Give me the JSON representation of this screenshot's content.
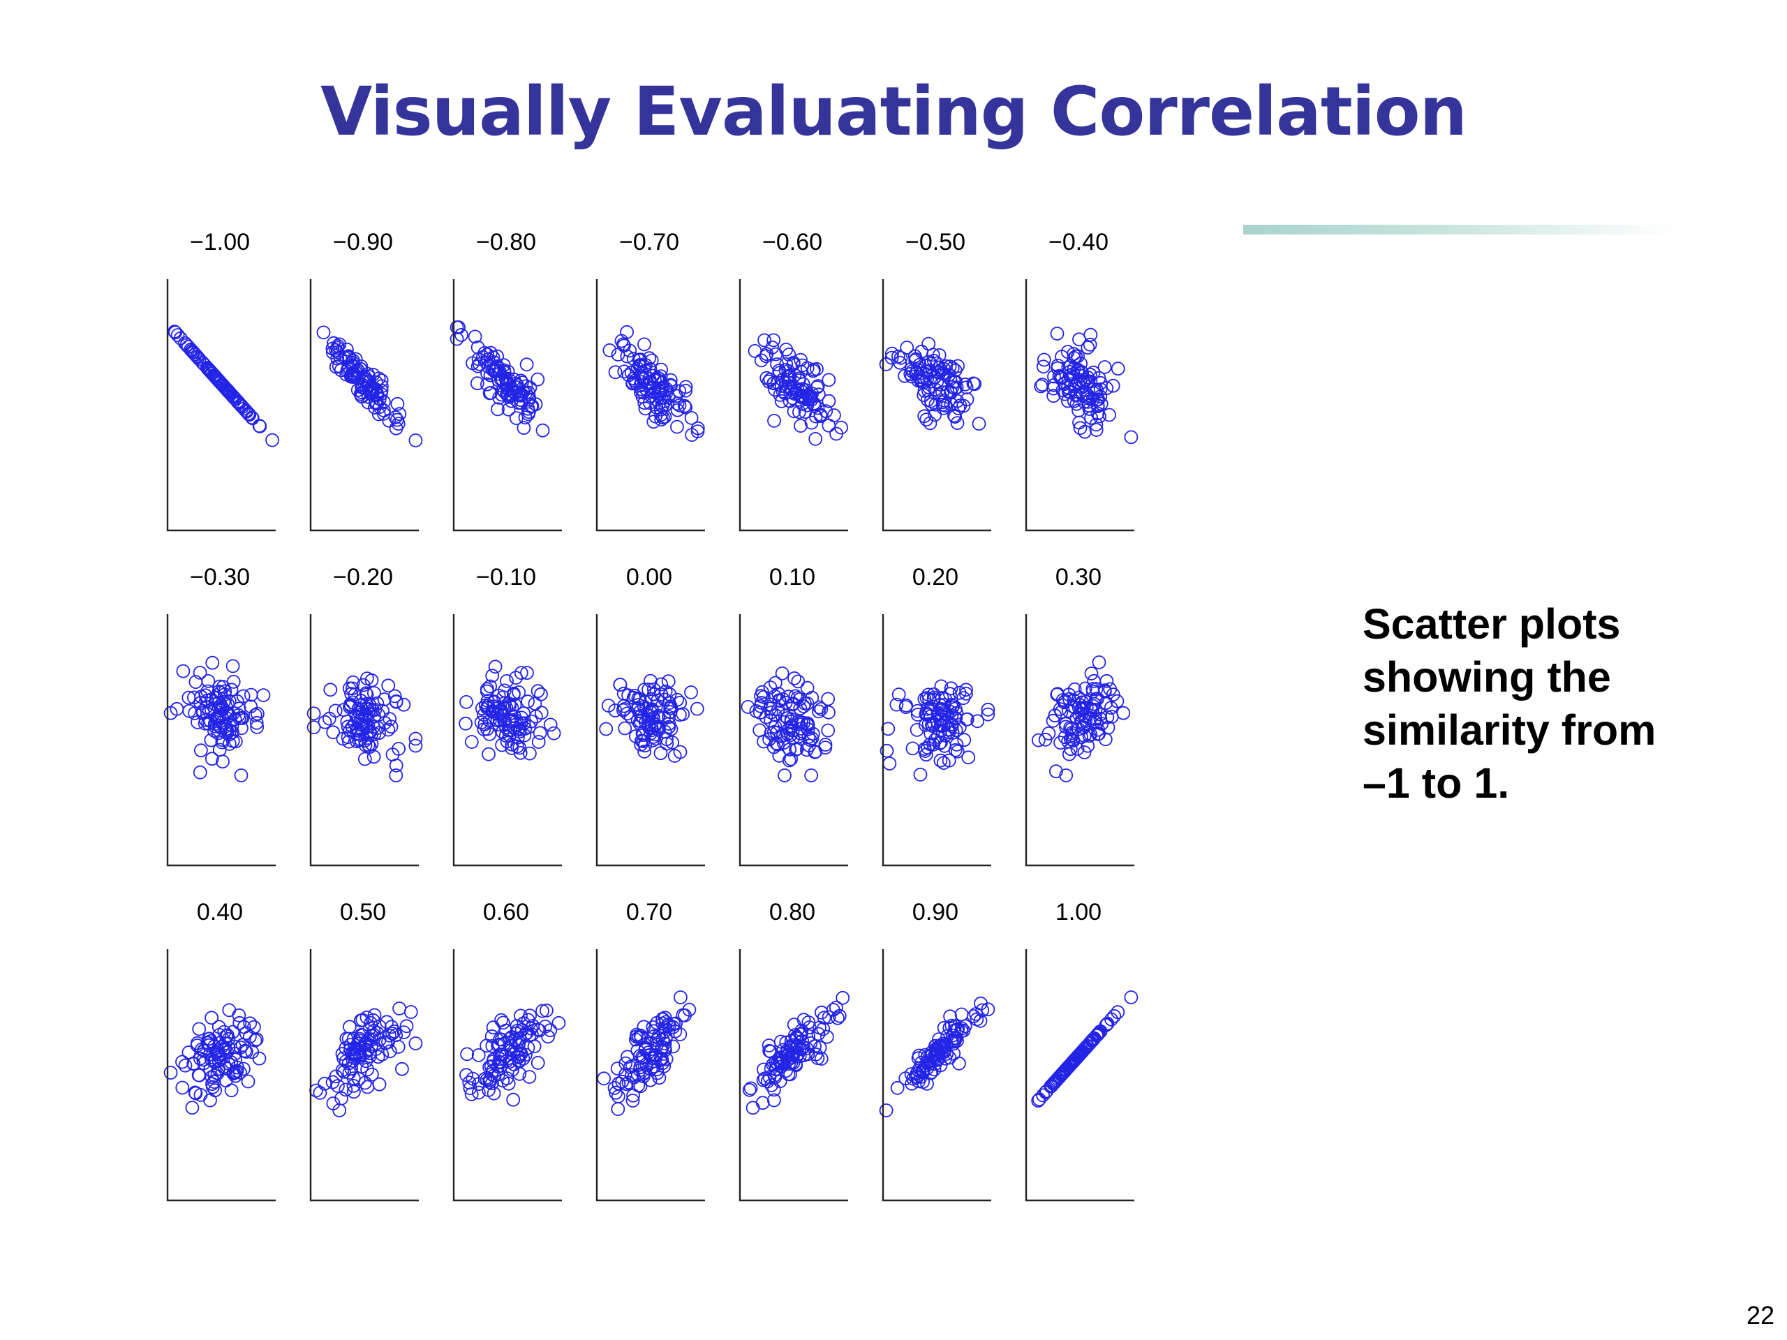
{
  "slide": {
    "title": "Visually Evaluating Correlation",
    "caption_lines": [
      "Scatter plots",
      "showing the",
      "similarity from",
      "–1 to 1."
    ],
    "page_number": "22"
  },
  "colors": {
    "title": "#34349a",
    "points": "#2424e6",
    "accent_rule": "#a9d2cc"
  },
  "chart_data": {
    "type": "scatter",
    "marker": "open-circle",
    "points_per_panel": 100,
    "panels": [
      {
        "label": "−1.00",
        "r": -1.0
      },
      {
        "label": "−0.90",
        "r": -0.9
      },
      {
        "label": "−0.80",
        "r": -0.8
      },
      {
        "label": "−0.70",
        "r": -0.7
      },
      {
        "label": "−0.60",
        "r": -0.6
      },
      {
        "label": "−0.50",
        "r": -0.5
      },
      {
        "label": "−0.40",
        "r": -0.4
      },
      {
        "label": "−0.30",
        "r": -0.3
      },
      {
        "label": "−0.20",
        "r": -0.2
      },
      {
        "label": "−0.10",
        "r": -0.1
      },
      {
        "label": "0.00",
        "r": 0.0
      },
      {
        "label": "0.10",
        "r": 0.1
      },
      {
        "label": "0.20",
        "r": 0.2
      },
      {
        "label": "0.30",
        "r": 0.3
      },
      {
        "label": "0.40",
        "r": 0.4
      },
      {
        "label": "0.50",
        "r": 0.5
      },
      {
        "label": "0.60",
        "r": 0.6
      },
      {
        "label": "0.70",
        "r": 0.7
      },
      {
        "label": "0.80",
        "r": 0.8
      },
      {
        "label": "0.90",
        "r": 0.9
      },
      {
        "label": "1.00",
        "r": 1.0
      }
    ]
  }
}
